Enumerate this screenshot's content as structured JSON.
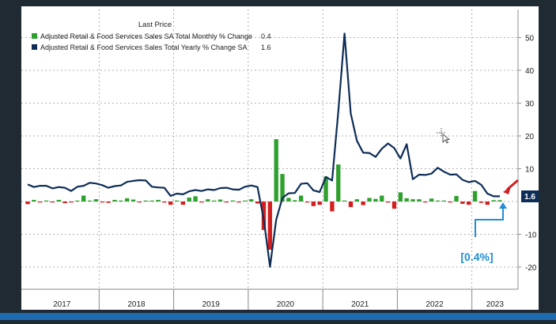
{
  "chart_data": {
    "type": "bar+line",
    "legend": {
      "title": "Last Price",
      "entries": [
        {
          "label": "Adjusted Retail & Food Services Sales SA Total Monthly % Change",
          "last_price": "0.4",
          "color": "#2ea02e"
        },
        {
          "label": "Adjusted Retail & Food Services Sales Total Yearly % Change SA",
          "last_price": "1.6",
          "color": "#0d2d57"
        }
      ]
    },
    "y_axis": {
      "min": -25,
      "max": 55,
      "ticks": [
        50,
        40,
        30,
        20,
        10,
        -10,
        -20
      ],
      "side": "right"
    },
    "x_axis": {
      "years": [
        "2017",
        "2018",
        "2019",
        "2020",
        "2021",
        "2022",
        "2023"
      ]
    },
    "x_months": [
      "2017-01",
      "2017-02",
      "2017-03",
      "2017-04",
      "2017-05",
      "2017-06",
      "2017-07",
      "2017-08",
      "2017-09",
      "2017-10",
      "2017-11",
      "2017-12",
      "2018-01",
      "2018-02",
      "2018-03",
      "2018-04",
      "2018-05",
      "2018-06",
      "2018-07",
      "2018-08",
      "2018-09",
      "2018-10",
      "2018-11",
      "2018-12",
      "2019-01",
      "2019-02",
      "2019-03",
      "2019-04",
      "2019-05",
      "2019-06",
      "2019-07",
      "2019-08",
      "2019-09",
      "2019-10",
      "2019-11",
      "2019-12",
      "2020-01",
      "2020-02",
      "2020-03",
      "2020-04",
      "2020-05",
      "2020-06",
      "2020-07",
      "2020-08",
      "2020-09",
      "2020-10",
      "2020-11",
      "2020-12",
      "2021-01",
      "2021-02",
      "2021-03",
      "2021-04",
      "2021-05",
      "2021-06",
      "2021-07",
      "2021-08",
      "2021-09",
      "2021-10",
      "2021-11",
      "2021-12",
      "2022-01",
      "2022-02",
      "2022-03",
      "2022-04",
      "2022-05",
      "2022-06",
      "2022-07",
      "2022-08",
      "2022-09",
      "2022-10",
      "2022-11",
      "2022-12",
      "2023-01",
      "2023-02",
      "2023-03",
      "2023-04",
      "2023-05"
    ],
    "series": [
      {
        "name": "Adjusted Retail & Food Services Sales SA Total Monthly % Change",
        "type": "bar",
        "values": [
          -0.8,
          0.5,
          -0.1,
          0.3,
          -0.1,
          0.5,
          -0.5,
          -0.2,
          0.2,
          1.8,
          0.2,
          0.7,
          -0.2,
          -0.4,
          0.5,
          0.3,
          1.0,
          0.6,
          -0.1,
          0.1,
          0.1,
          0.5,
          -0.3,
          -1.0,
          0.2,
          -1.0,
          1.2,
          1.6,
          -0.2,
          0.7,
          0.2,
          0.6,
          -0.2,
          0.3,
          -0.1,
          0.1,
          0.7,
          -0.6,
          -8.7,
          -14.7,
          19.0,
          8.4,
          1.1,
          0.4,
          1.8,
          -0.1,
          -1.4,
          -1.0,
          7.6,
          -3.0,
          11.3,
          0.3,
          -1.7,
          0.7,
          -1.1,
          1.1,
          0.8,
          1.8,
          -0.3,
          -2.2,
          2.8,
          1.0,
          0.7,
          0.7,
          -0.1,
          0.9,
          0.2,
          0.1,
          -0.1,
          1.7,
          -0.7,
          -1.0,
          3.2,
          -0.4,
          -1.0,
          0.4,
          0.4
        ]
      },
      {
        "name": "Adjusted Retail & Food Services Sales Total Yearly % Change SA",
        "type": "line",
        "values": [
          5.2,
          4.4,
          4.8,
          4.8,
          4.0,
          4.4,
          4.2,
          3.2,
          4.5,
          4.8,
          5.7,
          5.5,
          5.0,
          4.2,
          4.7,
          4.9,
          6.0,
          6.3,
          6.5,
          6.4,
          4.5,
          4.3,
          4.2,
          1.7,
          2.4,
          2.2,
          3.1,
          3.5,
          3.2,
          3.7,
          3.5,
          4.1,
          4.2,
          3.7,
          3.6,
          4.5,
          4.9,
          4.4,
          -5.5,
          -19.9,
          -5.6,
          1.1,
          2.5,
          2.6,
          5.4,
          5.6,
          3.4,
          2.9,
          7.5,
          6.4,
          27.6,
          51.2,
          26.8,
          18.5,
          14.9,
          14.8,
          13.6,
          16.1,
          17.7,
          16.3,
          13.1,
          17.5,
          6.8,
          8.2,
          8.1,
          8.5,
          10.3,
          9.1,
          8.2,
          8.3,
          6.6,
          5.9,
          6.3,
          5.1,
          2.4,
          1.6,
          1.6
        ]
      }
    ],
    "annotation": {
      "text": "[0.4%]",
      "color": "#1f8fd6"
    }
  }
}
